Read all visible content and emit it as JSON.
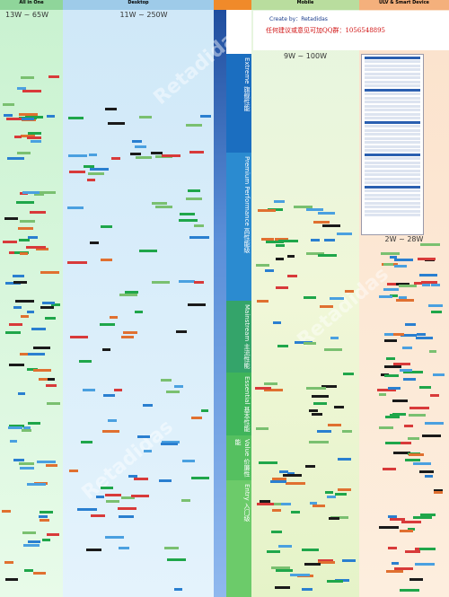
{
  "columns": [
    {
      "title": "All in One",
      "range": "13W ~ 65W"
    },
    {
      "title": "Desktop",
      "range": "11W ~ 250W"
    },
    {
      "title": "Mobile",
      "range": "9W ~ 100W"
    },
    {
      "title": "ULV & Smart Device",
      "range": "2W ~ 28W"
    }
  ],
  "credit": {
    "author": "Create by：Retadidas",
    "note": "任何建议或意见可加QQ群：1056548895"
  },
  "tiers": [
    {
      "en": "Extreme",
      "zh": "旗舰性能"
    },
    {
      "en": "Premium Performance",
      "zh": "高性能级"
    },
    {
      "en": "Mainstream",
      "zh": "主流性能"
    },
    {
      "en": "Essential",
      "zh": "基本性能"
    },
    {
      "en": "Value",
      "zh": "价廉性能"
    },
    {
      "en": "Entry",
      "zh": "入门级"
    }
  ],
  "watermark": "Retadidas"
}
